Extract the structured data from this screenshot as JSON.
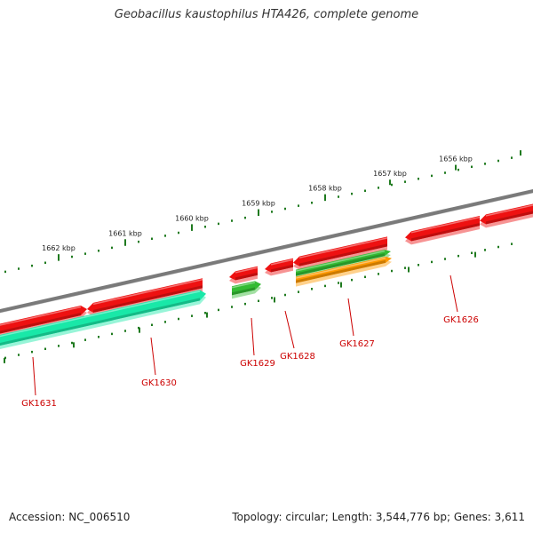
{
  "title": "Geobacillus kaustophilus HTA426, complete genome",
  "footer": {
    "accession": "Accession: NC_006510",
    "stats": "Topology: circular; Length: 3,544,776 bp; Genes: 3,611"
  },
  "colors": {
    "backbone": "#7a7a7a",
    "tick": "#1f7a1f",
    "label": "#cc0000",
    "gene_red": "#ee1111",
    "gene_cyan": "#19e8a8",
    "gene_green": "#33bb33",
    "gene_orange": "#ff9900"
  },
  "scale_labels": [
    "1662 kbp",
    "1661 kbp",
    "1660 kbp",
    "1659 kbp",
    "1658 kbp",
    "1657 kbp",
    "1656 kbp"
  ],
  "genes": [
    {
      "id": "GK1631",
      "label": "GK1631",
      "color": "gene_cyan"
    },
    {
      "id": "GK1630",
      "label": "GK1630",
      "color": "gene_cyan"
    },
    {
      "id": "GK1629",
      "label": "GK1629",
      "color": "gene_green"
    },
    {
      "id": "GK1628",
      "label": "GK1628",
      "color": "gene_red"
    },
    {
      "id": "GK1627",
      "label": "GK1627",
      "color": "gene_green"
    },
    {
      "id": "GK1626",
      "label": "GK1626",
      "color": "gene_red"
    }
  ]
}
